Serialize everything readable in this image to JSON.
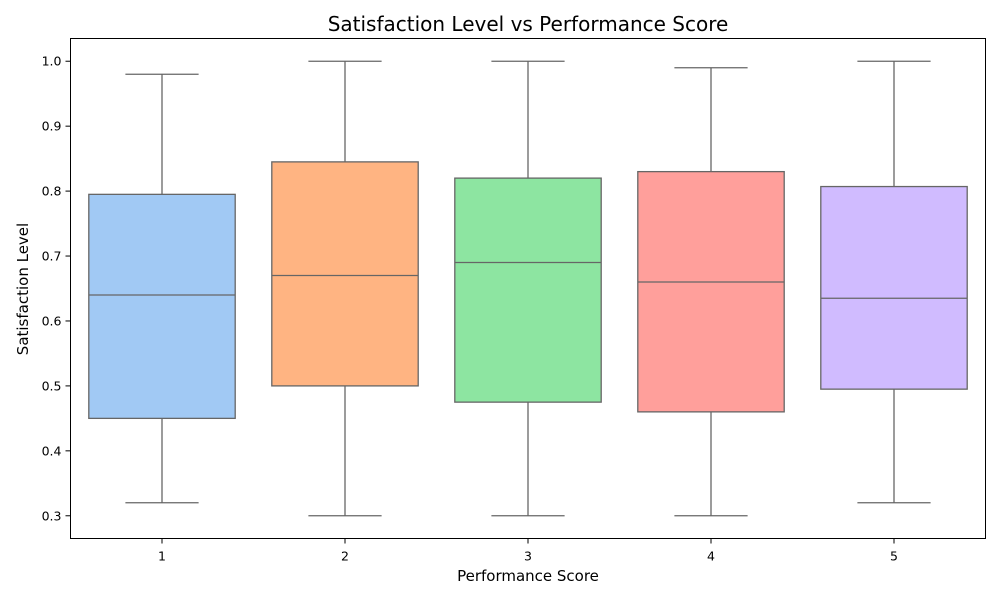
{
  "chart_data": {
    "type": "box",
    "title": "Satisfaction Level vs Performance Score",
    "xlabel": "Performance Score",
    "ylabel": "Satisfaction Level",
    "categories": [
      "1",
      "2",
      "3",
      "4",
      "5"
    ],
    "ylim": [
      0.265,
      1.035
    ],
    "yticks": [
      0.3,
      0.4,
      0.5,
      0.6,
      0.7,
      0.8,
      0.9,
      1.0
    ],
    "ytick_labels": [
      "0.3",
      "0.4",
      "0.5",
      "0.6",
      "0.7",
      "0.8",
      "0.9",
      "1.0"
    ],
    "grid": false,
    "boxes": [
      {
        "category": "1",
        "min": 0.32,
        "q1": 0.45,
        "median": 0.64,
        "q3": 0.795,
        "max": 0.98,
        "color": "#a1c9f4"
      },
      {
        "category": "2",
        "min": 0.3,
        "q1": 0.5,
        "median": 0.67,
        "q3": 0.845,
        "max": 1.0,
        "color": "#ffb482"
      },
      {
        "category": "3",
        "min": 0.3,
        "q1": 0.475,
        "median": 0.69,
        "q3": 0.82,
        "max": 1.0,
        "color": "#8de5a1"
      },
      {
        "category": "4",
        "min": 0.3,
        "q1": 0.46,
        "median": 0.66,
        "q3": 0.83,
        "max": 0.99,
        "color": "#ff9f9b"
      },
      {
        "category": "5",
        "min": 0.32,
        "q1": 0.495,
        "median": 0.635,
        "q3": 0.807,
        "max": 1.0,
        "color": "#d0bbff"
      }
    ],
    "line_color": "#666666"
  }
}
